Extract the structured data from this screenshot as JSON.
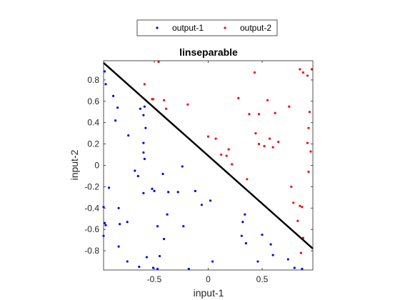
{
  "chart_data": {
    "type": "scatter",
    "title": "linseparable",
    "xlabel": "input-1",
    "ylabel": "input-2",
    "xlim": [
      -0.97,
      0.97
    ],
    "ylim": [
      -0.98,
      0.98
    ],
    "xticks": [
      -0.5,
      0,
      0.5
    ],
    "xtick_labels": [
      "-0.5",
      "0",
      "0.5"
    ],
    "yticks": [
      -0.8,
      -0.6,
      -0.4,
      -0.2,
      0,
      0.2,
      0.4,
      0.6,
      0.8
    ],
    "ytick_labels": [
      "-0.8",
      "-0.6",
      "-0.4",
      "-0.2",
      "0",
      "0.2",
      "0.4",
      "0.6",
      "0.8"
    ],
    "grid": false,
    "legend_position": "top-outside",
    "series": [
      {
        "name": "output-1",
        "color": "#0000ff",
        "points": [
          [
            -0.96,
            0.88
          ],
          [
            -0.95,
            0.76
          ],
          [
            -0.88,
            0.65
          ],
          [
            -0.86,
            0.42
          ],
          [
            -0.84,
            0.54
          ],
          [
            -0.74,
            0.28
          ],
          [
            -0.63,
            0.53
          ],
          [
            -0.59,
            0.55
          ],
          [
            -0.6,
            0.47
          ],
          [
            -0.6,
            0.21
          ],
          [
            -0.58,
            0.35
          ],
          [
            -0.6,
            0.12
          ],
          [
            -0.59,
            0.06
          ],
          [
            -0.68,
            -0.05
          ],
          [
            -0.65,
            -0.1
          ],
          [
            -0.6,
            -0.26
          ],
          [
            -0.52,
            -0.22
          ],
          [
            -0.5,
            -0.24
          ],
          [
            -0.42,
            -0.08
          ],
          [
            -0.37,
            -0.25
          ],
          [
            -0.28,
            -0.25
          ],
          [
            -0.24,
            -0.01
          ],
          [
            -0.12,
            -0.24
          ],
          [
            -0.06,
            -0.37
          ],
          [
            0.02,
            -0.33
          ],
          [
            -0.92,
            -0.21
          ],
          [
            -0.83,
            -0.4
          ],
          [
            -0.97,
            -0.39
          ],
          [
            -0.96,
            -0.54
          ],
          [
            -0.95,
            -0.56
          ],
          [
            -0.82,
            -0.55
          ],
          [
            -0.75,
            -0.53
          ],
          [
            -0.97,
            -0.66
          ],
          [
            -0.83,
            -0.76
          ],
          [
            -0.38,
            -0.46
          ],
          [
            -0.47,
            -0.57
          ],
          [
            -0.41,
            -0.69
          ],
          [
            -0.23,
            -0.57
          ],
          [
            -0.57,
            -0.86
          ],
          [
            -0.45,
            -0.85
          ],
          [
            -0.75,
            -0.9
          ],
          [
            -0.64,
            -0.95
          ],
          [
            -0.51,
            -0.96
          ],
          [
            -0.47,
            -0.97
          ],
          [
            -0.18,
            -0.97
          ],
          [
            0.04,
            -0.9
          ],
          [
            0.32,
            -0.53
          ],
          [
            0.34,
            -0.46
          ],
          [
            0.31,
            -0.66
          ],
          [
            0.35,
            -0.73
          ],
          [
            0.46,
            -0.9
          ],
          [
            0.5,
            -0.65
          ],
          [
            0.58,
            -0.74
          ],
          [
            0.6,
            -0.84
          ],
          [
            0.74,
            -0.88
          ],
          [
            0.8,
            -0.96
          ],
          [
            0.87,
            -0.97
          ]
        ]
      },
      {
        "name": "output-2",
        "color": "#ff0000",
        "points": [
          [
            -0.59,
            0.76
          ],
          [
            -0.52,
            0.62
          ],
          [
            -0.51,
            0.62
          ],
          [
            -0.46,
            0.97
          ],
          [
            -0.41,
            0.61
          ],
          [
            -0.39,
            0.53
          ],
          [
            -0.19,
            0.57
          ],
          [
            0.0,
            0.27
          ],
          [
            0.07,
            0.25
          ],
          [
            0.12,
            0.1
          ],
          [
            0.17,
            0.09
          ],
          [
            0.19,
            0.15
          ],
          [
            0.22,
            0.01
          ],
          [
            0.28,
            0.63
          ],
          [
            0.36,
            -0.13
          ],
          [
            0.38,
            0.48
          ],
          [
            0.43,
            0.87
          ],
          [
            0.44,
            0.3
          ],
          [
            0.47,
            0.48
          ],
          [
            0.47,
            0.2
          ],
          [
            0.52,
            0.18
          ],
          [
            0.55,
            0.61
          ],
          [
            0.57,
            0.25
          ],
          [
            0.6,
            0.17
          ],
          [
            0.62,
            0.49
          ],
          [
            0.65,
            0.22
          ],
          [
            0.75,
            0.55
          ],
          [
            0.77,
            -0.2
          ],
          [
            0.79,
            -0.35
          ],
          [
            0.83,
            -0.52
          ],
          [
            0.85,
            -0.38
          ],
          [
            0.85,
            0.9
          ],
          [
            0.87,
            -0.39
          ],
          [
            0.88,
            0.87
          ],
          [
            0.88,
            -0.68
          ],
          [
            0.92,
            0.84
          ],
          [
            0.92,
            0.21
          ],
          [
            0.93,
            0.35
          ],
          [
            0.93,
            -0.06
          ],
          [
            0.94,
            0.5
          ],
          [
            0.95,
            0.13
          ],
          [
            0.96,
            0.9
          ],
          [
            0.86,
            -0.82
          ]
        ]
      }
    ],
    "decision_line": {
      "color": "#000000",
      "from": [
        -0.97,
        0.96
      ],
      "to": [
        0.97,
        -0.78
      ]
    }
  }
}
